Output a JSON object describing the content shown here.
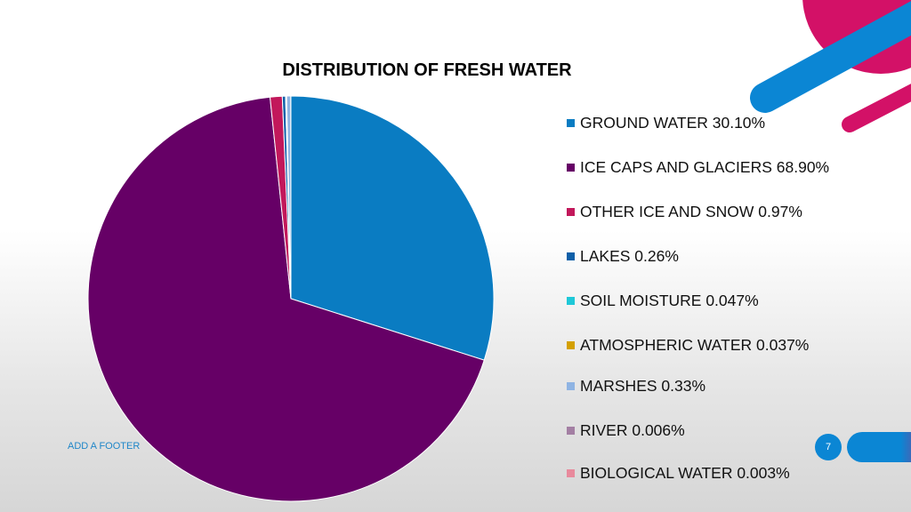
{
  "chart_data": {
    "type": "pie",
    "title": "DISTRIBUTION OF FRESH WATER",
    "slices": [
      {
        "label": "GROUND WATER 30.10%",
        "value": 30.1,
        "color": "#0a7cc2"
      },
      {
        "label": "ICE CAPS AND GLACIERS 68.90%",
        "value": 68.9,
        "color": "#660066"
      },
      {
        "label": "OTHER ICE AND SNOW 0.97%",
        "value": 0.97,
        "color": "#c2185b"
      },
      {
        "label": "LAKES 0.26%",
        "value": 0.26,
        "color": "#0d5fa8"
      },
      {
        "label": "SOIL MOISTURE 0.047%",
        "value": 0.047,
        "color": "#1ec8d8"
      },
      {
        "label": "ATMOSPHERIC WATER 0.037%",
        "value": 0.037,
        "color": "#d4a000"
      },
      {
        "label": "MARSHES 0.33%",
        "value": 0.33,
        "color": "#8fb4e3"
      },
      {
        "label": "RIVER 0.006%",
        "value": 0.006,
        "color": "#a37fa3"
      },
      {
        "label": "BIOLOGICAL WATER 0.003%",
        "value": 0.003,
        "color": "#e88a9c"
      }
    ],
    "legend_position": "right"
  },
  "footer": {
    "text": "ADD A FOOTER"
  },
  "page_number": "7"
}
